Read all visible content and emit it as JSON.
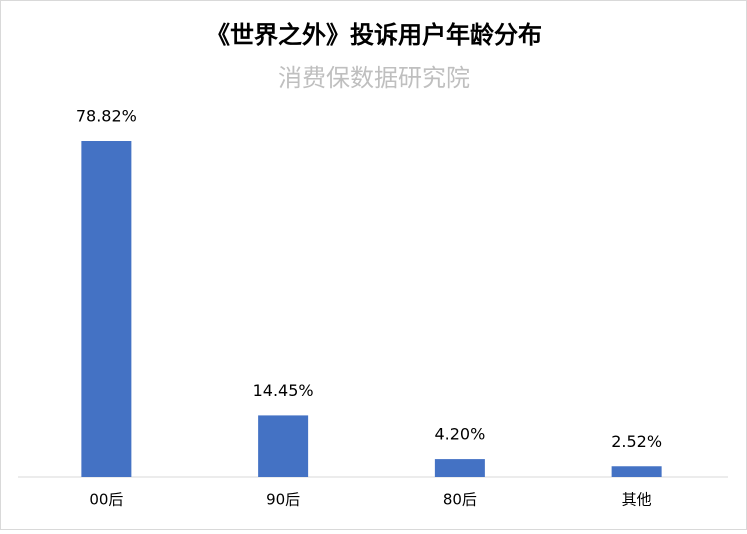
{
  "chart_data": {
    "type": "bar",
    "title": "《世界之外》投诉用户年龄分布",
    "subtitle": "消费保数据研究院",
    "categories": [
      "00后",
      "90后",
      "80后",
      "其他"
    ],
    "values": [
      78.82,
      14.45,
      4.2,
      2.52
    ],
    "value_labels": [
      "78.82%",
      "14.45%",
      "4.20%",
      "2.52%"
    ],
    "color": "#4472c4"
  }
}
